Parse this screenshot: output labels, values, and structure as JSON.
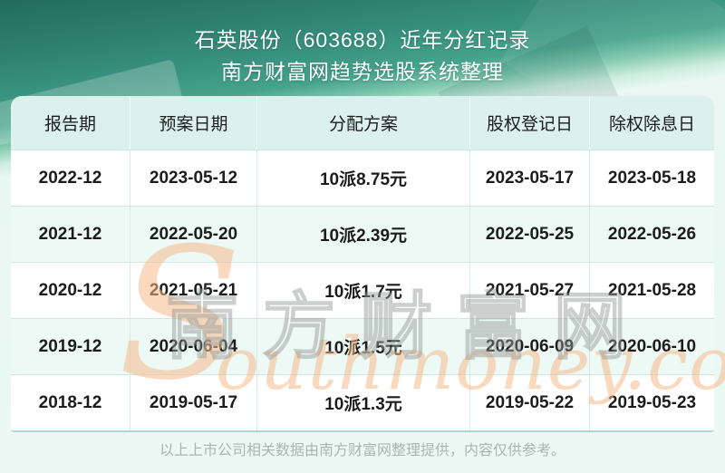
{
  "header": {
    "title_line1": "石英股份（603688）近年分红记录",
    "title_line2": "南方财富网趋势选股系统整理"
  },
  "table": {
    "columns": [
      "报告期",
      "预案日期",
      "分配方案",
      "股权登记日",
      "除权除息日"
    ],
    "rows": [
      [
        "2022-12",
        "2023-05-12",
        "10派8.75元",
        "2023-05-17",
        "2023-05-18"
      ],
      [
        "2021-12",
        "2022-05-20",
        "10派2.39元",
        "2022-05-25",
        "2022-05-26"
      ],
      [
        "2020-12",
        "2021-05-21",
        "10派1.7元",
        "2021-05-27",
        "2021-05-28"
      ],
      [
        "2019-12",
        "2020-06-04",
        "10派1.5元",
        "2020-06-09",
        "2020-06-10"
      ],
      [
        "2018-12",
        "2019-05-17",
        "10派1.3元",
        "2019-05-22",
        "2019-05-23"
      ]
    ]
  },
  "watermark": {
    "brand_cn": "南方财富网",
    "brand_script_cap": "S",
    "brand_script_rest": "outhmoney.com"
  },
  "footer": {
    "note": "以上上市公司相关数据由南方财富网整理提供，内容仅供参考。"
  },
  "colors": {
    "hero_teal_dark": "#246b5f",
    "hero_teal_mid": "#38907e",
    "page_mint": "#e9f7f2",
    "header_row_bg": "#ddf1ec",
    "stripe_row_bg": "#edf9f5",
    "row_bg": "#ffffff",
    "table_border": "#cfe9e2",
    "table_bottom_border": "#a9d8cc",
    "cell_text": "#1c1c1c",
    "title_text": "#ffffff",
    "footer_text": "#a9b5b1",
    "watermark_orange": "#f6b98e",
    "watermark_gray": "#7d8783"
  },
  "chart_data": {
    "type": "table",
    "title": "石英股份（603688）近年分红记录",
    "subtitle": "南方财富网趋势选股系统整理",
    "columns": [
      "报告期",
      "预案日期",
      "分配方案",
      "股权登记日",
      "除权除息日"
    ],
    "rows": [
      [
        "2022-12",
        "2023-05-12",
        "10派8.75元",
        "2023-05-17",
        "2023-05-18"
      ],
      [
        "2021-12",
        "2022-05-20",
        "10派2.39元",
        "2022-05-25",
        "2022-05-26"
      ],
      [
        "2020-12",
        "2021-05-21",
        "10派1.7元",
        "2021-05-27",
        "2021-05-28"
      ],
      [
        "2019-12",
        "2020-06-04",
        "10派1.5元",
        "2020-06-09",
        "2020-06-10"
      ],
      [
        "2018-12",
        "2019-05-17",
        "10派1.3元",
        "2019-05-22",
        "2019-05-23"
      ]
    ],
    "dividend_per_10_shares_yuan": [
      8.75,
      2.39,
      1.7,
      1.5,
      1.3
    ],
    "note": "以上上市公司相关数据由南方财富网整理提供，内容仅供参考。"
  }
}
